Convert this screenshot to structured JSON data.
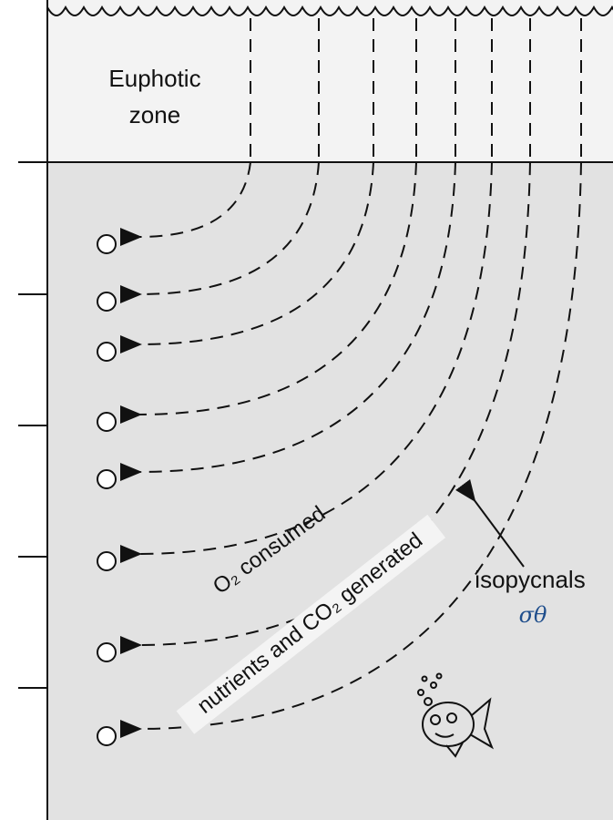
{
  "zone_label": {
    "line1": "Euphotic",
    "line2": "zone"
  },
  "flow_labels": {
    "upper": "O₂ consumed",
    "lower": "nutrients and CO₂ generated"
  },
  "isopycnal_label": {
    "name": "isopycnals",
    "symbol": "σθ"
  }
}
